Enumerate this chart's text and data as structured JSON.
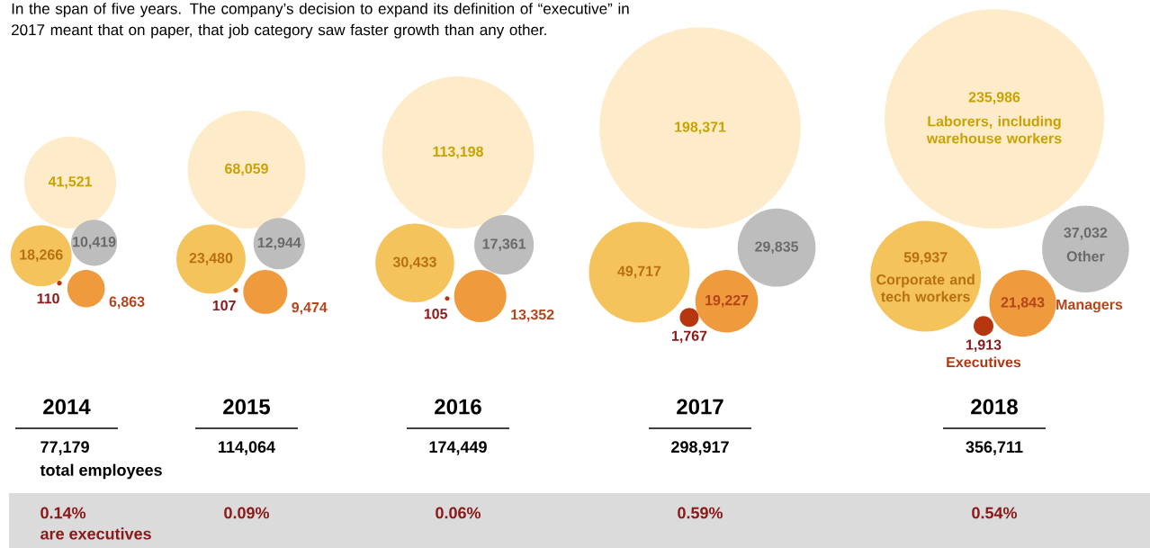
{
  "chart_data": {
    "type": "other",
    "title": "In the span of five years. The company’s decision to expand its definition of “executive” in 2017 meant that on paper, that job category saw faster growth than any other.",
    "categories": [
      "2014",
      "2015",
      "2016",
      "2017",
      "2018"
    ],
    "series": [
      {
        "name": "Laborers, including warehouse workers",
        "color": "#fdebc9",
        "values": [
          41521,
          68059,
          113198,
          198371,
          235986
        ],
        "value_labels": [
          "41,521",
          "68,059",
          "113,198",
          "198,371",
          "235,986"
        ]
      },
      {
        "name": "Corporate and tech workers",
        "color": "#f4c35c",
        "values": [
          18266,
          23480,
          30433,
          49717,
          59937
        ],
        "value_labels": [
          "18,266",
          "23,480",
          "30,433",
          "49,717",
          "59,937"
        ]
      },
      {
        "name": "Other",
        "color": "#bdbdbd",
        "values": [
          10419,
          12944,
          17361,
          29835,
          37032
        ],
        "value_labels": [
          "10,419",
          "12,944",
          "17,361",
          "29,835",
          "37,032"
        ]
      },
      {
        "name": "Managers",
        "color": "#ee9a3d",
        "values": [
          6863,
          9474,
          13352,
          19227,
          21843
        ],
        "value_labels": [
          "6,863",
          "9,474",
          "13,352",
          "19,227",
          "21,843"
        ]
      },
      {
        "name": "Executives",
        "color": "#b5360f",
        "values": [
          110,
          107,
          105,
          1767,
          1913
        ],
        "value_labels": [
          "110",
          "107",
          "105",
          "1,767",
          "1,913"
        ]
      }
    ],
    "totals": [
      "77,179",
      "114,064",
      "174,449",
      "298,917",
      "356,711"
    ],
    "annotations": [
      "0.14%",
      "0.09%",
      "0.06%",
      "0.59%",
      "0.54%",
      "total employees",
      "are executives"
    ]
  }
}
